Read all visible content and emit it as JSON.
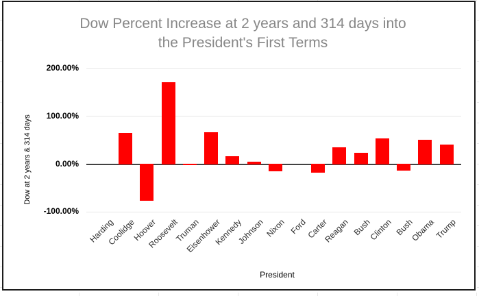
{
  "header": {
    "title_line1": "Dow Percent Increase at 2 years and 314 days into",
    "title_line2": "the President's First Terms"
  },
  "chart_data": {
    "type": "bar",
    "title": "Dow Percent Increase at 2 years and 314 days into the President's First Terms",
    "xlabel": "President",
    "ylabel": "Dow at 2 years & 314 days",
    "categories": [
      "Harding",
      "Coolidge",
      "Hoover",
      "Roosevelt",
      "Truman",
      "Eisenhower",
      "Kennedy",
      "Johnson",
      "Nixon",
      "Ford",
      "Carter",
      "Reagan",
      "Bush",
      "Clinton",
      "Bush",
      "Obama",
      "Trump"
    ],
    "values": [
      0,
      63,
      -75,
      170,
      -1,
      65,
      15,
      3,
      -13,
      0,
      -16,
      33,
      22,
      52,
      -12,
      49,
      39
    ],
    "value_unit": "percent of Dow increase",
    "ylim": [
      -100,
      200
    ],
    "yticks": [
      {
        "label": "200.00%",
        "value": 200
      },
      {
        "label": "100.00%",
        "value": 100
      },
      {
        "label": "0.00%",
        "value": 0
      },
      {
        "label": "-100.00%",
        "value": -100
      }
    ],
    "grid": true,
    "legend": "none",
    "bar_color": "#ff0000"
  },
  "colors": {
    "bar": "#ff0000",
    "title_text": "#878787",
    "axis_text": "#000000",
    "gridline": "#e6e6e6",
    "zero_line": "#424242",
    "frame_border": "#1c1c1c"
  }
}
